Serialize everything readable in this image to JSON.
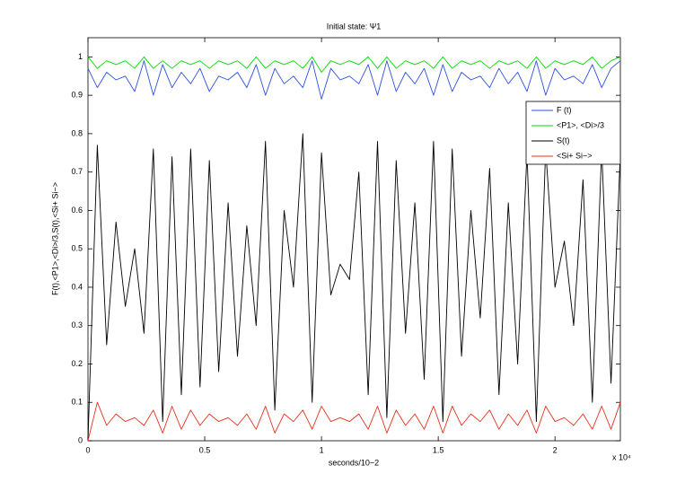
{
  "chart_data": {
    "type": "line",
    "title": "Initial state: Ψ1",
    "x_label": "seconds/10−2",
    "y_label": "F(t),<P1>,<Di>/3,S(t),<Si+ Si−>",
    "x_multiplier": "x 10⁴",
    "xlim": [
      0,
      2.28
    ],
    "ylim": [
      0,
      1.05
    ],
    "xticks": [
      0,
      0.5,
      1,
      1.5,
      2
    ],
    "yticks": [
      0,
      0.1,
      0.2,
      0.3,
      0.4,
      0.5,
      0.6,
      0.7,
      0.8,
      0.9,
      1
    ],
    "grid": false,
    "legend_position": "upper right",
    "x": [
      0,
      0.04,
      0.08,
      0.12,
      0.16,
      0.2,
      0.24,
      0.28,
      0.32,
      0.36,
      0.4,
      0.44,
      0.48,
      0.52,
      0.56,
      0.6,
      0.64,
      0.68,
      0.72,
      0.76,
      0.8,
      0.84,
      0.88,
      0.92,
      0.96,
      1,
      1.04,
      1.08,
      1.12,
      1.16,
      1.2,
      1.24,
      1.28,
      1.32,
      1.36,
      1.4,
      1.44,
      1.48,
      1.52,
      1.56,
      1.6,
      1.64,
      1.68,
      1.72,
      1.76,
      1.8,
      1.84,
      1.88,
      1.92,
      1.96,
      2,
      2.04,
      2.08,
      2.12,
      2.16,
      2.2,
      2.24,
      2.28
    ],
    "series": [
      {
        "name": "F (t)",
        "color": "#2f4fe0",
        "values": [
          0.97,
          0.92,
          0.96,
          0.94,
          0.95,
          0.91,
          0.99,
          0.9,
          0.98,
          0.92,
          0.96,
          0.93,
          0.97,
          0.91,
          0.95,
          0.94,
          0.96,
          0.92,
          0.98,
          0.9,
          0.97,
          0.93,
          0.95,
          0.92,
          0.99,
          0.89,
          0.97,
          0.94,
          0.95,
          0.93,
          0.98,
          0.9,
          0.99,
          0.91,
          0.96,
          0.93,
          0.97,
          0.9,
          0.98,
          0.91,
          0.96,
          0.94,
          0.95,
          0.92,
          0.97,
          0.93,
          0.96,
          0.91,
          0.99,
          0.9,
          0.97,
          0.94,
          0.95,
          0.93,
          0.98,
          0.92,
          0.97,
          0.99
        ]
      },
      {
        "name": "<P1>, <Di>/3",
        "color": "#00dd00",
        "values": [
          1.0,
          0.97,
          0.99,
          0.98,
          0.99,
          0.97,
          1.0,
          0.97,
          0.99,
          0.97,
          0.99,
          0.98,
          0.99,
          0.97,
          0.99,
          0.98,
          0.99,
          0.97,
          1.0,
          0.97,
          0.99,
          0.98,
          0.99,
          0.97,
          1.0,
          0.96,
          0.99,
          0.98,
          0.99,
          0.98,
          1.0,
          0.97,
          1.0,
          0.97,
          0.99,
          0.98,
          0.99,
          0.97,
          1.0,
          0.97,
          0.99,
          0.98,
          0.99,
          0.97,
          0.99,
          0.98,
          0.99,
          0.97,
          1.0,
          0.97,
          0.99,
          0.98,
          0.99,
          0.98,
          1.0,
          0.97,
          0.99,
          1.0
        ]
      },
      {
        "name": "S(t)",
        "color": "#000000",
        "values": [
          0.0,
          0.77,
          0.25,
          0.57,
          0.35,
          0.5,
          0.28,
          0.76,
          0.05,
          0.74,
          0.12,
          0.76,
          0.14,
          0.73,
          0.18,
          0.62,
          0.22,
          0.56,
          0.3,
          0.78,
          0.08,
          0.6,
          0.4,
          0.8,
          0.1,
          0.75,
          0.38,
          0.46,
          0.42,
          0.7,
          0.12,
          0.78,
          0.06,
          0.73,
          0.28,
          0.62,
          0.16,
          0.78,
          0.05,
          0.76,
          0.22,
          0.6,
          0.32,
          0.71,
          0.12,
          0.62,
          0.2,
          0.75,
          0.05,
          0.76,
          0.4,
          0.52,
          0.3,
          0.68,
          0.1,
          0.76,
          0.15,
          0.75
        ]
      },
      {
        "name": "<Si+ Si−>",
        "color": "#e8301c",
        "values": [
          0.0,
          0.1,
          0.04,
          0.07,
          0.05,
          0.06,
          0.04,
          0.08,
          0.02,
          0.09,
          0.03,
          0.08,
          0.04,
          0.07,
          0.05,
          0.06,
          0.04,
          0.07,
          0.03,
          0.09,
          0.02,
          0.07,
          0.05,
          0.08,
          0.03,
          0.09,
          0.05,
          0.06,
          0.05,
          0.07,
          0.03,
          0.09,
          0.02,
          0.08,
          0.04,
          0.07,
          0.03,
          0.09,
          0.02,
          0.09,
          0.04,
          0.07,
          0.05,
          0.08,
          0.03,
          0.07,
          0.04,
          0.08,
          0.02,
          0.09,
          0.05,
          0.06,
          0.04,
          0.07,
          0.03,
          0.09,
          0.03,
          0.1
        ]
      }
    ]
  }
}
